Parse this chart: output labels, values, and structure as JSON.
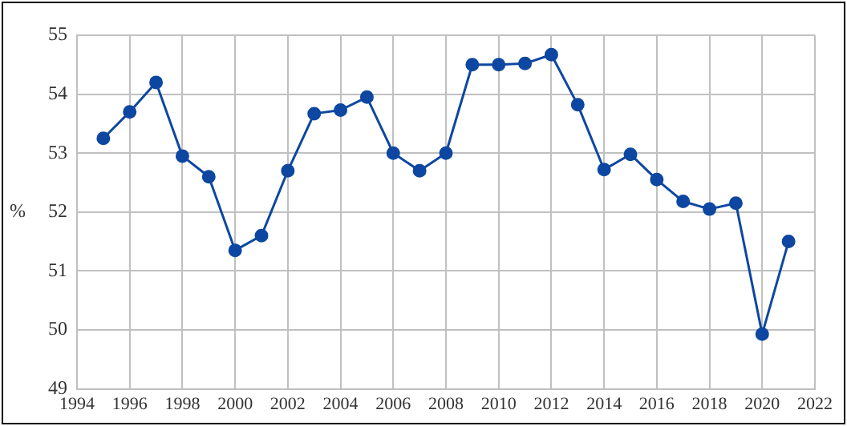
{
  "chart_data": {
    "type": "line",
    "ylabel": "%",
    "x": [
      1995,
      1996,
      1997,
      1998,
      1999,
      2000,
      2001,
      2002,
      2003,
      2004,
      2005,
      2006,
      2007,
      2008,
      2009,
      2010,
      2011,
      2012,
      2013,
      2014,
      2015,
      2016,
      2017,
      2018,
      2019,
      2020,
      2021
    ],
    "series": [
      {
        "color": "#0d47a1",
        "values": [
          53.25,
          53.7,
          54.2,
          52.95,
          52.6,
          51.35,
          51.6,
          52.7,
          53.67,
          53.73,
          53.95,
          53.0,
          52.7,
          53.0,
          54.5,
          54.5,
          54.52,
          54.67,
          53.82,
          52.72,
          52.98,
          52.55,
          52.18,
          52.05,
          52.15,
          49.93,
          51.5
        ]
      }
    ],
    "xlim": [
      1994,
      2022
    ],
    "xticks": [
      1994,
      1996,
      1998,
      2000,
      2002,
      2004,
      2006,
      2008,
      2010,
      2012,
      2014,
      2016,
      2018,
      2020,
      2022
    ],
    "ylim": [
      49,
      55
    ],
    "yticks": [
      49,
      50,
      51,
      52,
      53,
      54,
      55
    ],
    "grid": true,
    "legend": false,
    "marker": "circle",
    "line_style": "solid"
  }
}
